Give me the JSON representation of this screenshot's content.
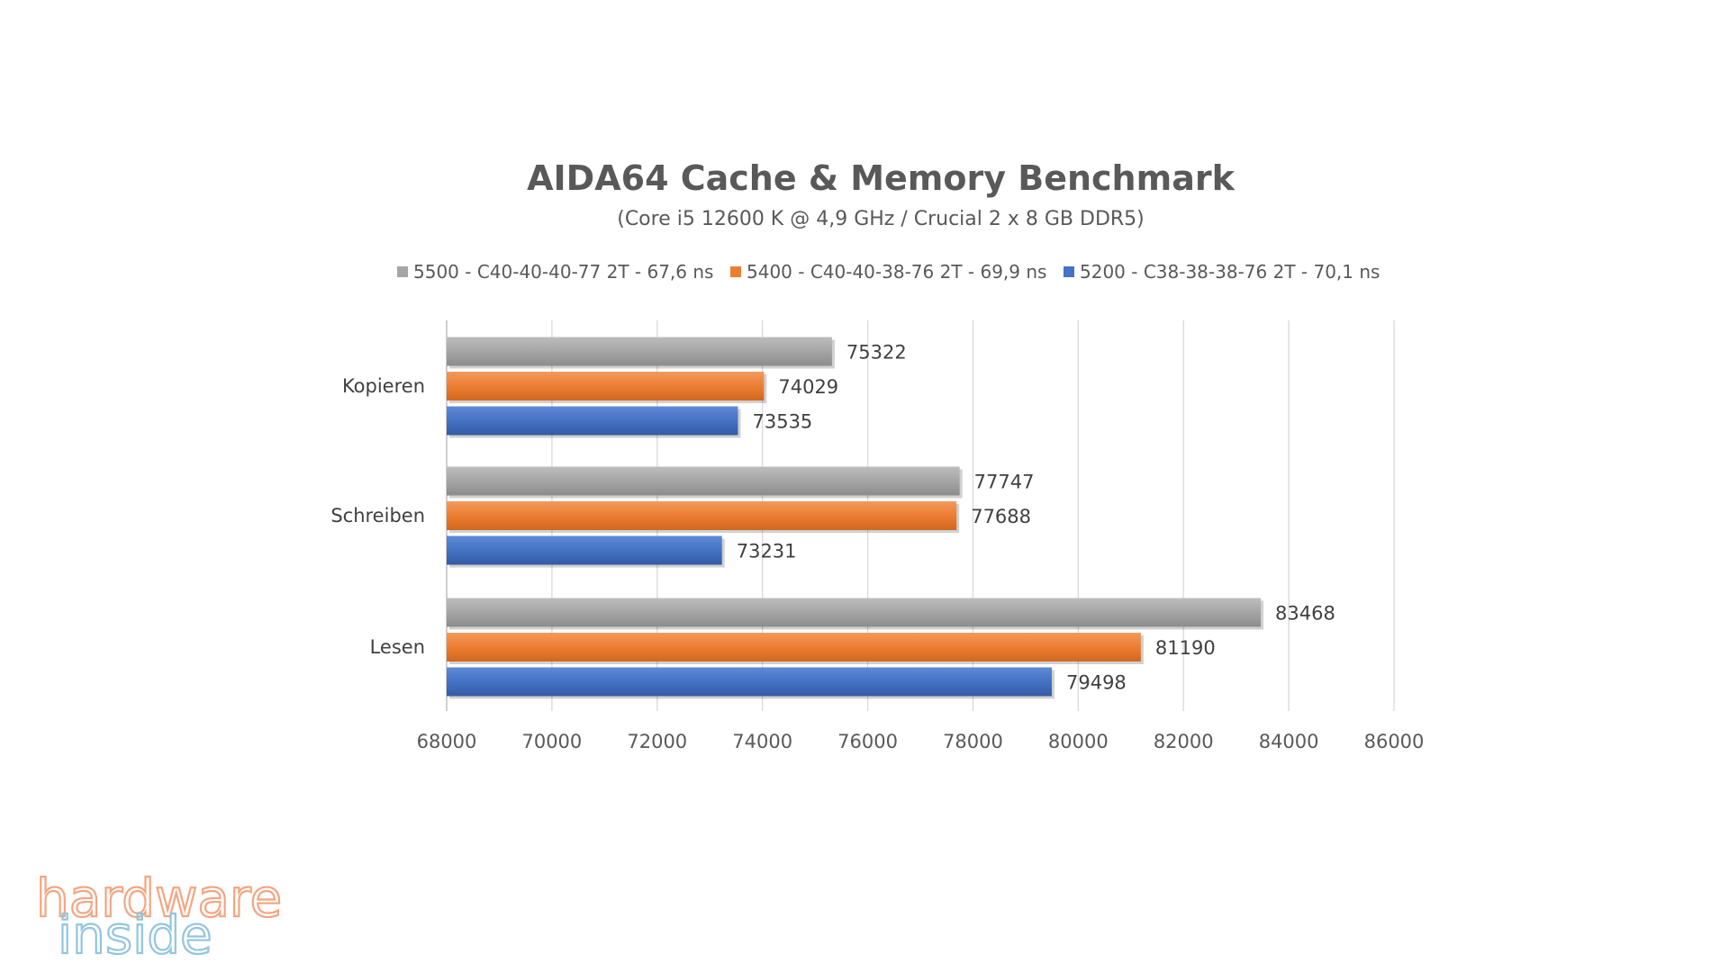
{
  "chart_data": {
    "type": "bar",
    "orientation": "horizontal",
    "title": "AIDA64 Cache & Memory Benchmark",
    "subtitle": "(Core i5 12600 K @ 4,9 GHz / Crucial 2 x 8 GB DDR5)",
    "categories": [
      "Kopieren",
      "Schreiben",
      "Lesen"
    ],
    "series": [
      {
        "name": "5500 - C40-40-40-77 2T - 67,6 ns",
        "color": "#a5a5a5",
        "values": [
          75322,
          77747,
          83468
        ]
      },
      {
        "name": "5400 - C40-40-38-76 2T - 69,9 ns",
        "color": "#ed7d31",
        "values": [
          74029,
          77688,
          81190
        ]
      },
      {
        "name": "5200 - C38-38-38-76 2T - 70,1 ns",
        "color": "#4472c4",
        "values": [
          73535,
          73231,
          79498
        ]
      }
    ],
    "xlim": [
      68000,
      86000
    ],
    "xticks": [
      "68000",
      "70000",
      "72000",
      "74000",
      "76000",
      "78000",
      "80000",
      "82000",
      "84000",
      "86000"
    ],
    "grid": true,
    "legend_position": "top",
    "xlabel": "",
    "ylabel": ""
  },
  "watermark": {
    "line1": "hardware",
    "line2": "inside",
    "colors": [
      "#f4a582",
      "#92c5de"
    ]
  }
}
